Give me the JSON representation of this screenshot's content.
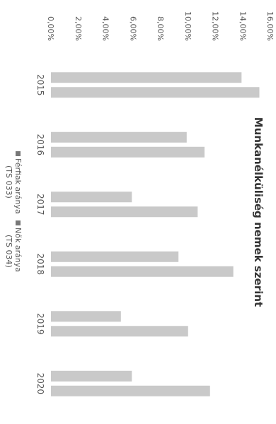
{
  "chart_data": {
    "type": "bar",
    "orientation": "rotated-90-clockwise",
    "title": "Munkanélküliség nemek szerint",
    "categories": [
      "2015",
      "2016",
      "2017",
      "2018",
      "2019",
      "2020"
    ],
    "series": [
      {
        "name": "Férfiak aránya (TS 033)",
        "values": [
          13.9,
          9.9,
          5.9,
          9.3,
          5.1,
          5.9
        ]
      },
      {
        "name": "Nők aránya (TS 034)",
        "values": [
          15.2,
          11.2,
          10.7,
          13.3,
          10.0,
          11.6
        ]
      }
    ],
    "ylim": [
      0,
      16
    ],
    "ytick_labels": [
      "0,00%",
      "2,00%",
      "4,00%",
      "6,00%",
      "8,00%",
      "10,00%",
      "12,00%",
      "14,00%",
      "16,00%"
    ],
    "grid": false,
    "legend": "bottom",
    "colors": [
      "#c9c9c9",
      "#c9c9c9"
    ]
  }
}
